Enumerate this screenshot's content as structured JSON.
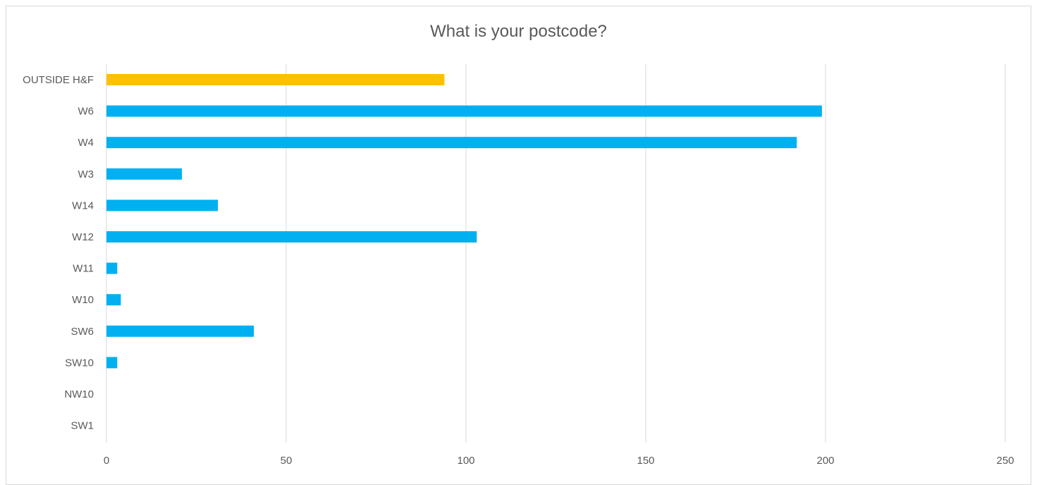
{
  "chart_data": {
    "type": "bar",
    "orientation": "horizontal",
    "title": "What is your postcode?",
    "xlabel": "",
    "ylabel": "",
    "categories": [
      "OUTSIDE H&F",
      "W6",
      "W4",
      "W3",
      "W14",
      "W12",
      "W11",
      "W10",
      "SW6",
      "SW10",
      "NW10",
      "SW1"
    ],
    "values": [
      94,
      199,
      192,
      21,
      31,
      103,
      3,
      4,
      41,
      3,
      0,
      0
    ],
    "bar_colors": [
      "#FFC000",
      "#00B0F0",
      "#00B0F0",
      "#00B0F0",
      "#00B0F0",
      "#00B0F0",
      "#00B0F0",
      "#00B0F0",
      "#00B0F0",
      "#00B0F0",
      "#00B0F0",
      "#00B0F0"
    ],
    "xlim": [
      0,
      250
    ],
    "x_ticks": [
      "0",
      "50",
      "100",
      "150",
      "200",
      "250"
    ],
    "grid": true,
    "legend": "none"
  }
}
